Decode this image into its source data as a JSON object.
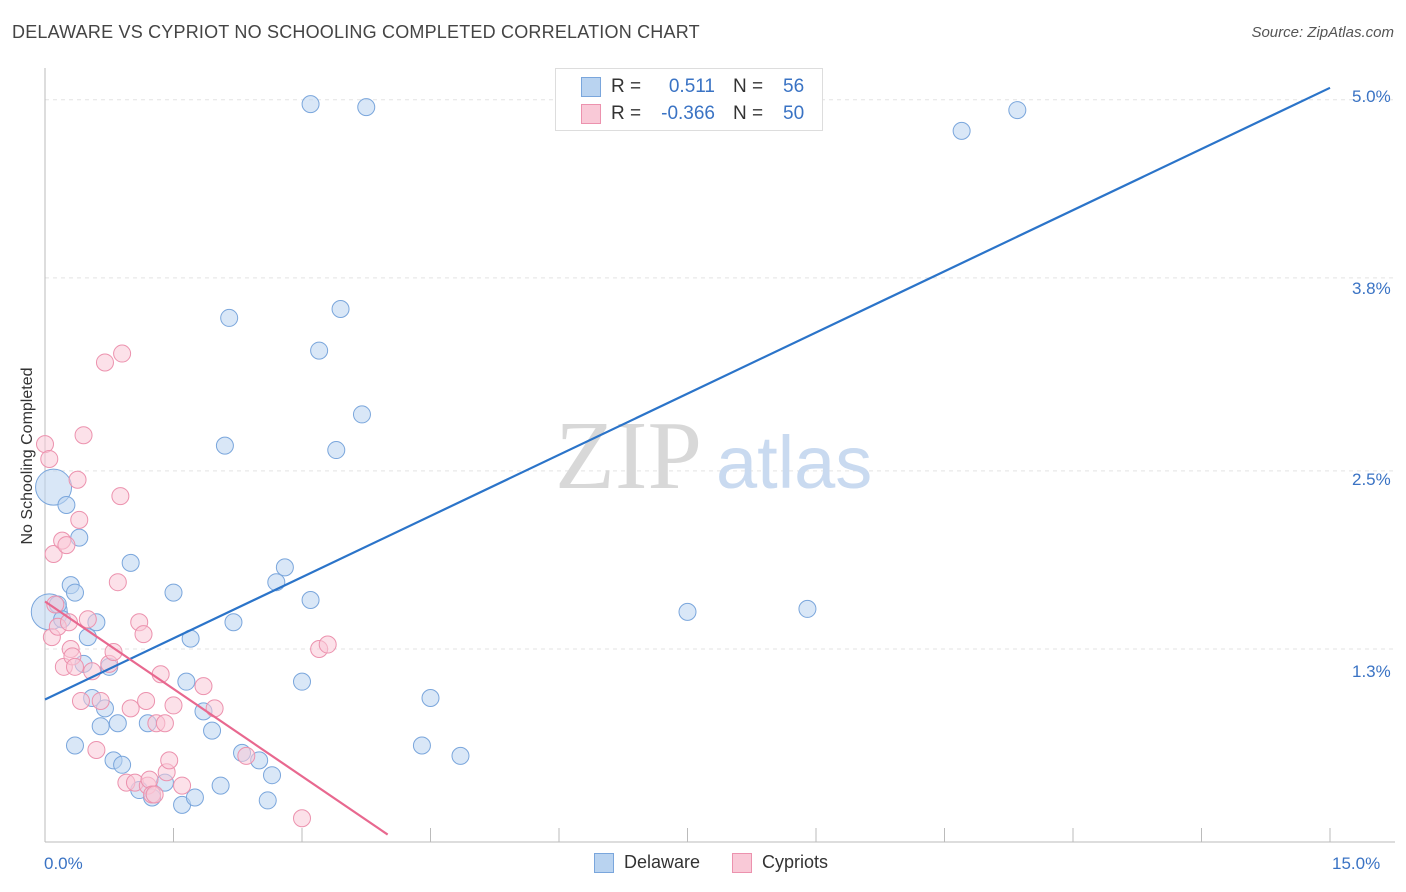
{
  "title": "DELAWARE VS CYPRIOT NO SCHOOLING COMPLETED CORRELATION CHART",
  "source": "Source: ZipAtlas.com",
  "watermark": {
    "zip": "ZIP",
    "atlas": "atlas"
  },
  "legend": {
    "series": [
      {
        "name": "Delaware",
        "r_label": "R =",
        "r_value": "0.511",
        "n_label": "N =",
        "n_value": "56",
        "fill": "#b9d3f0",
        "stroke": "#7aa6dc"
      },
      {
        "name": "Cypriots",
        "r_label": "R =",
        "r_value": "-0.366",
        "n_label": "N =",
        "n_value": "50",
        "fill": "#f9c9d7",
        "stroke": "#ec92ae"
      }
    ]
  },
  "chart_data": {
    "type": "scatter",
    "title": "DELAWARE VS CYPRIOT NO SCHOOLING COMPLETED CORRELATION CHART",
    "xlabel": "",
    "ylabel": "No Schooling Completed",
    "xlim": [
      0,
      15
    ],
    "ylim": [
      0,
      5.2
    ],
    "x_tick_labels": [
      "0.0%",
      "15.0%"
    ],
    "y_ticks": [
      1.3,
      2.5,
      3.8,
      5.0
    ],
    "y_tick_labels": [
      "1.3%",
      "2.5%",
      "3.8%",
      "5.0%"
    ],
    "series": [
      {
        "name": "Delaware",
        "color": "#7aa6dc",
        "fill": "#b9d3f0",
        "trend_color": "#2b74c9",
        "trend": {
          "x": [
            0,
            15
          ],
          "y": [
            0.96,
            5.08
          ]
        },
        "points": [
          [
            0.05,
            1.55
          ],
          [
            0.1,
            2.39
          ],
          [
            0.15,
            1.6
          ],
          [
            0.2,
            1.5
          ],
          [
            0.25,
            2.27
          ],
          [
            0.3,
            1.73
          ],
          [
            0.35,
            1.68
          ],
          [
            0.4,
            2.05
          ],
          [
            0.45,
            1.2
          ],
          [
            0.5,
            1.38
          ],
          [
            0.55,
            0.97
          ],
          [
            0.6,
            1.48
          ],
          [
            0.65,
            0.78
          ],
          [
            0.7,
            0.9
          ],
          [
            0.75,
            1.18
          ],
          [
            0.8,
            0.55
          ],
          [
            0.85,
            0.8
          ],
          [
            0.9,
            0.52
          ],
          [
            1.0,
            1.88
          ],
          [
            1.1,
            0.35
          ],
          [
            1.2,
            0.8
          ],
          [
            1.25,
            0.3
          ],
          [
            1.4,
            0.4
          ],
          [
            1.5,
            1.68
          ],
          [
            1.6,
            0.25
          ],
          [
            1.65,
            1.08
          ],
          [
            1.7,
            1.37
          ],
          [
            1.75,
            0.3
          ],
          [
            1.85,
            0.88
          ],
          [
            1.95,
            0.75
          ],
          [
            2.05,
            0.38
          ],
          [
            2.1,
            2.67
          ],
          [
            2.15,
            3.53
          ],
          [
            2.2,
            1.48
          ],
          [
            2.3,
            0.6
          ],
          [
            2.5,
            0.55
          ],
          [
            2.6,
            0.28
          ],
          [
            2.65,
            0.45
          ],
          [
            2.7,
            1.75
          ],
          [
            2.8,
            1.85
          ],
          [
            3.0,
            1.08
          ],
          [
            3.1,
            1.63
          ],
          [
            3.1,
            4.97
          ],
          [
            3.2,
            3.31
          ],
          [
            3.4,
            2.64
          ],
          [
            3.45,
            3.59
          ],
          [
            3.7,
            2.88
          ],
          [
            3.75,
            4.95
          ],
          [
            4.4,
            0.65
          ],
          [
            4.5,
            0.97
          ],
          [
            4.85,
            0.58
          ],
          [
            7.5,
            1.55
          ],
          [
            8.9,
            1.57
          ],
          [
            10.7,
            4.79
          ],
          [
            11.35,
            4.93
          ],
          [
            0.35,
            0.65
          ]
        ]
      },
      {
        "name": "Cypriots",
        "color": "#ec92ae",
        "fill": "#f9c9d7",
        "trend_color": "#e8688f",
        "trend": {
          "x": [
            0,
            4.0
          ],
          "y": [
            1.62,
            0.05
          ]
        },
        "points": [
          [
            0.0,
            2.68
          ],
          [
            0.05,
            2.58
          ],
          [
            0.08,
            1.38
          ],
          [
            0.1,
            1.94
          ],
          [
            0.12,
            1.6
          ],
          [
            0.15,
            1.45
          ],
          [
            0.2,
            2.03
          ],
          [
            0.22,
            1.18
          ],
          [
            0.25,
            2.0
          ],
          [
            0.28,
            1.48
          ],
          [
            0.3,
            1.3
          ],
          [
            0.32,
            1.25
          ],
          [
            0.35,
            1.18
          ],
          [
            0.38,
            2.44
          ],
          [
            0.4,
            2.17
          ],
          [
            0.42,
            0.95
          ],
          [
            0.45,
            2.74
          ],
          [
            0.5,
            1.5
          ],
          [
            0.55,
            1.15
          ],
          [
            0.6,
            0.62
          ],
          [
            0.65,
            0.95
          ],
          [
            0.7,
            3.23
          ],
          [
            0.75,
            1.2
          ],
          [
            0.8,
            1.28
          ],
          [
            0.85,
            1.75
          ],
          [
            0.88,
            2.33
          ],
          [
            0.9,
            3.29
          ],
          [
            0.95,
            0.4
          ],
          [
            1.0,
            0.9
          ],
          [
            1.05,
            0.4
          ],
          [
            1.1,
            1.48
          ],
          [
            1.15,
            1.4
          ],
          [
            1.18,
            0.95
          ],
          [
            1.2,
            0.38
          ],
          [
            1.22,
            0.42
          ],
          [
            1.25,
            0.32
          ],
          [
            1.28,
            0.32
          ],
          [
            1.3,
            0.8
          ],
          [
            1.35,
            1.13
          ],
          [
            1.4,
            0.8
          ],
          [
            1.42,
            0.47
          ],
          [
            1.45,
            0.55
          ],
          [
            1.5,
            0.92
          ],
          [
            1.6,
            0.38
          ],
          [
            1.85,
            1.05
          ],
          [
            1.98,
            0.9
          ],
          [
            2.35,
            0.58
          ],
          [
            3.2,
            1.3
          ],
          [
            3.3,
            1.33
          ],
          [
            3.0,
            0.16
          ]
        ]
      }
    ]
  }
}
